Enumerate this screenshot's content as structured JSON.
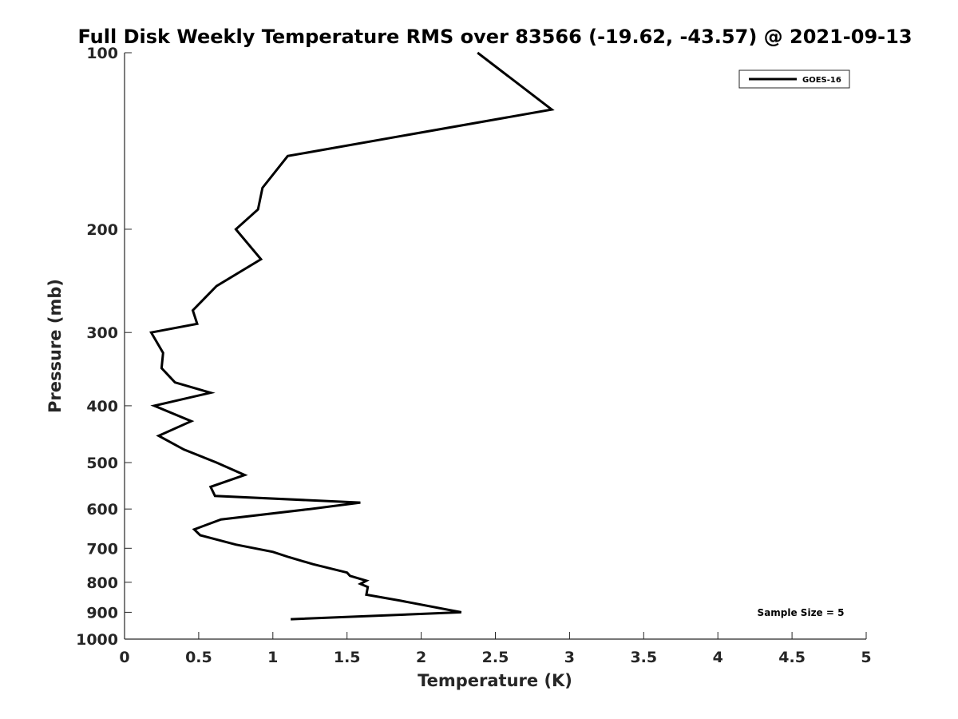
{
  "chart_data": {
    "type": "line",
    "title": "Full Disk Weekly Temperature RMS over 83566 (-19.62, -43.57) @ 2021-09-13",
    "xlabel": "Temperature (K)",
    "ylabel": "Pressure (mb)",
    "xlim": [
      0,
      5
    ],
    "ylim": [
      100,
      1000
    ],
    "yscale": "log",
    "y_reversed": true,
    "x_ticks": [
      "0",
      "0.5",
      "1",
      "1.5",
      "2",
      "2.5",
      "3",
      "3.5",
      "4",
      "4.5",
      "5"
    ],
    "y_ticks": [
      "100",
      "200",
      "300",
      "400",
      "500",
      "600",
      "700",
      "800",
      "900",
      "1000"
    ],
    "grid": false,
    "legend_placement": "top-right",
    "annotation": "Sample Size = 5",
    "series": [
      {
        "name": "GOES-16",
        "color": "#000000",
        "points": [
          [
            2.38,
            100
          ],
          [
            2.88,
            125
          ],
          [
            1.1,
            150
          ],
          [
            0.93,
            170
          ],
          [
            0.9,
            185
          ],
          [
            0.75,
            200
          ],
          [
            0.92,
            225
          ],
          [
            0.62,
            250
          ],
          [
            0.46,
            275
          ],
          [
            0.49,
            290
          ],
          [
            0.18,
            300
          ],
          [
            0.26,
            325
          ],
          [
            0.25,
            345
          ],
          [
            0.34,
            365
          ],
          [
            0.58,
            380
          ],
          [
            0.2,
            400
          ],
          [
            0.45,
            425
          ],
          [
            0.23,
            450
          ],
          [
            0.4,
            475
          ],
          [
            0.62,
            500
          ],
          [
            0.81,
            525
          ],
          [
            0.58,
            550
          ],
          [
            0.61,
            570
          ],
          [
            1.59,
            585
          ],
          [
            1.25,
            600
          ],
          [
            0.65,
            625
          ],
          [
            0.47,
            650
          ],
          [
            0.51,
            665
          ],
          [
            0.75,
            690
          ],
          [
            1.0,
            710
          ],
          [
            1.11,
            725
          ],
          [
            1.27,
            745
          ],
          [
            1.5,
            770
          ],
          [
            1.52,
            780
          ],
          [
            1.63,
            795
          ],
          [
            1.59,
            805
          ],
          [
            1.64,
            815
          ],
          [
            1.63,
            840
          ],
          [
            1.86,
            860
          ],
          [
            2.27,
            900
          ],
          [
            1.12,
            925
          ]
        ]
      }
    ]
  }
}
